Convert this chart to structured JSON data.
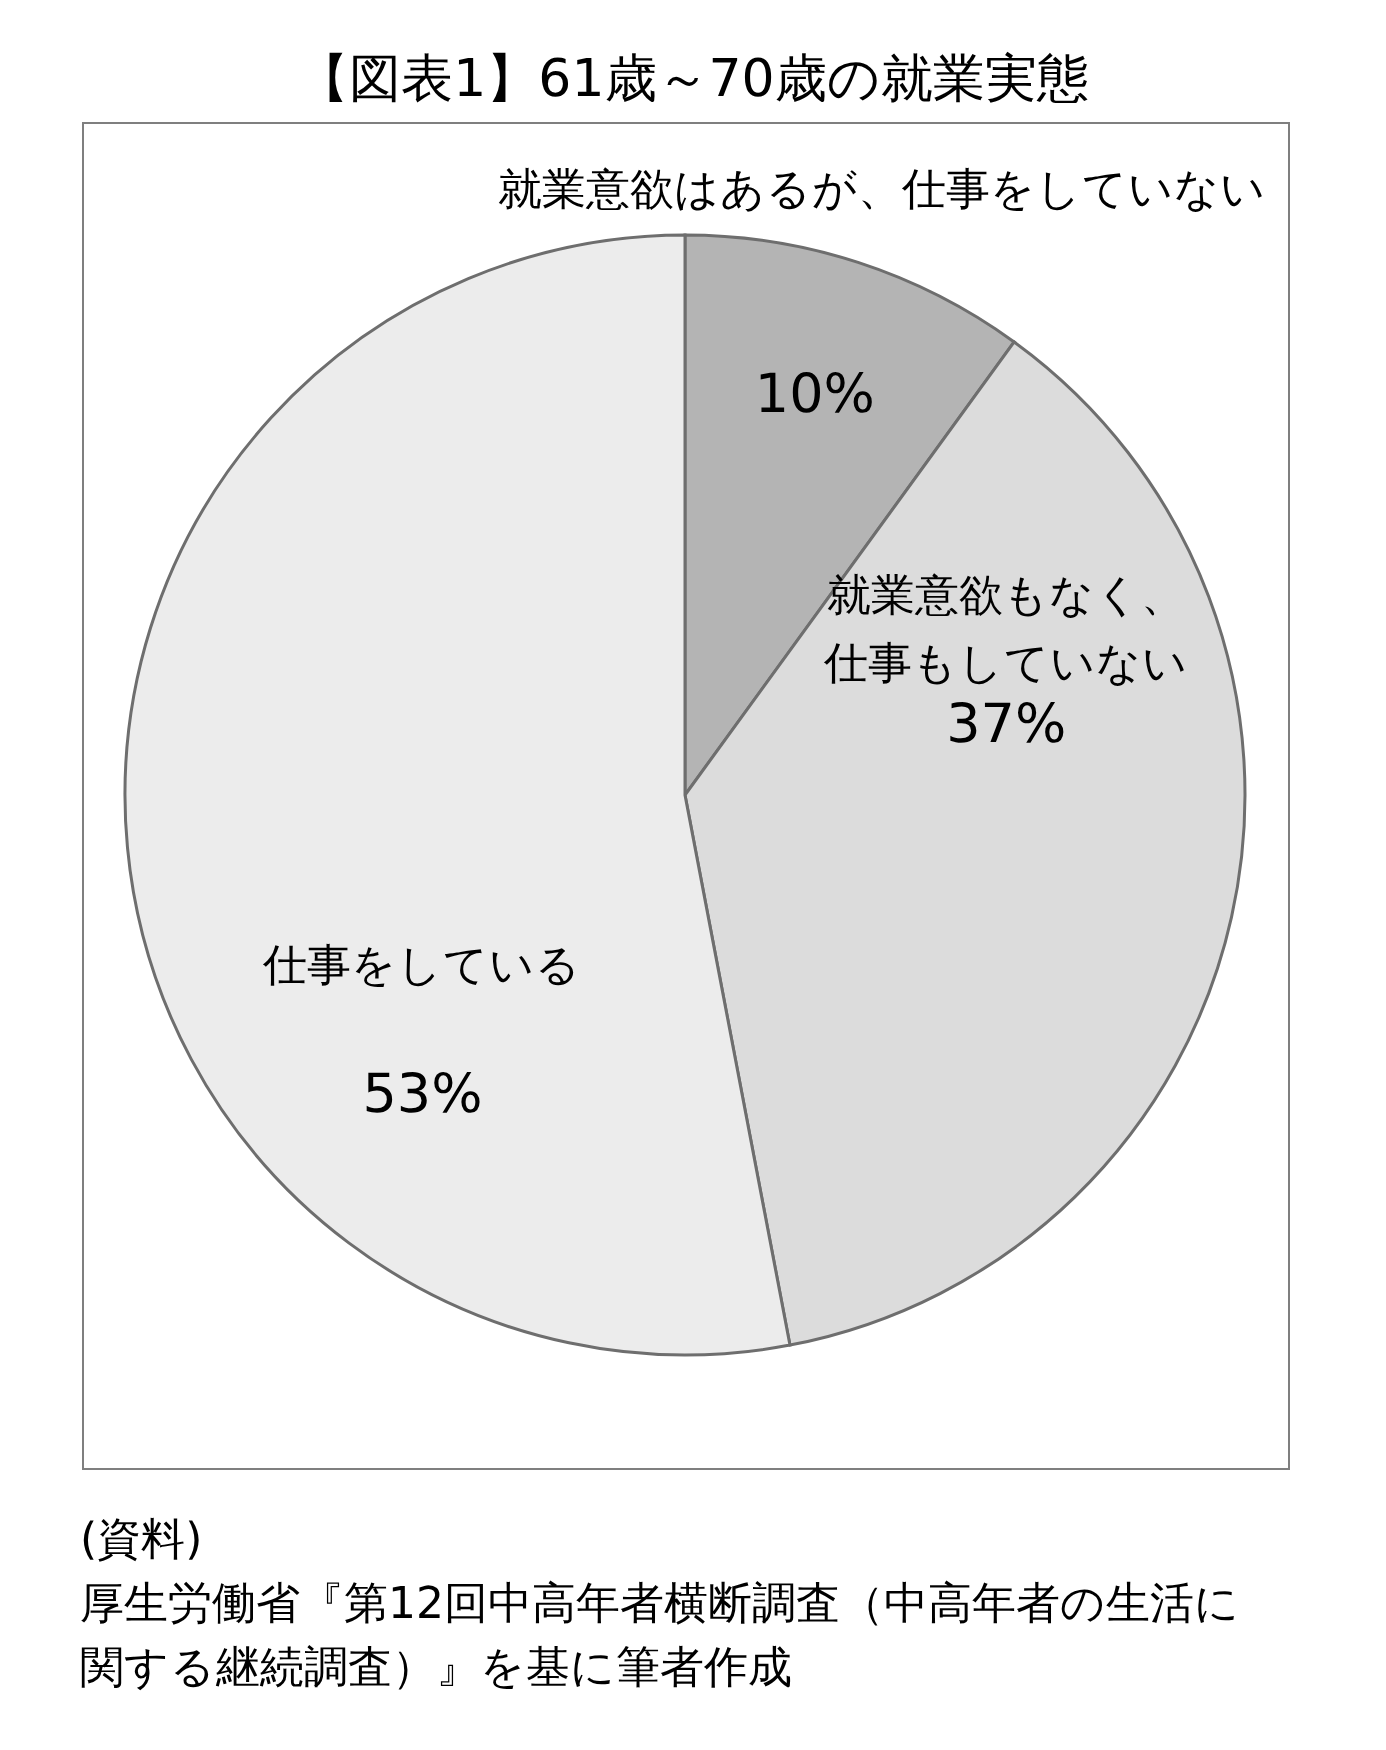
{
  "chart_data": {
    "type": "pie",
    "title": "【図表1】61歳～70歳の就業実態",
    "categories": [
      "就業意欲はあるが、仕事をしていない",
      "就業意欲もなく、仕事もしていない",
      "仕事をしている"
    ],
    "values": [
      10,
      37,
      53
    ],
    "value_labels": [
      "10%",
      "37%",
      "53%"
    ],
    "colors": [
      "#b4b4b4",
      "#dcdcdc",
      "#ececec"
    ],
    "annotations": [
      "(資料)",
      "厚生労働省『第12回中高年者横断調査（中高年者の生活に関する継続調査）』を基に筆者作成"
    ]
  }
}
